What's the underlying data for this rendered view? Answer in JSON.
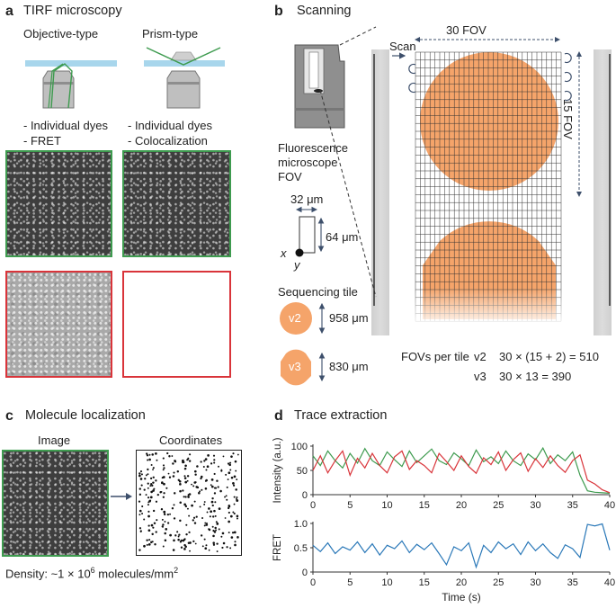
{
  "panel_a": {
    "letter": "a",
    "title": "TIRF microscopy",
    "objective_label": "Objective-type",
    "prism_label": "Prism-type",
    "objective_notes": [
      "- Individual dyes",
      "- FRET"
    ],
    "prism_notes": [
      "- Individual dyes",
      "- Colocalization"
    ]
  },
  "panel_b": {
    "letter": "b",
    "title": "Scanning",
    "fov_width_label": "30 FOV",
    "fov_height_label": "15 FOV",
    "scan_label": "Scan",
    "microscope_label": [
      "Fluorescence",
      "microscope",
      "FOV"
    ],
    "fov_x_um": "32 μm",
    "fov_y_um": "64 μm",
    "axis_x": "x",
    "axis_y": "y",
    "tile_title": "Sequencing tile",
    "tiles": [
      {
        "name": "v2",
        "size": "958 μm"
      },
      {
        "name": "v3",
        "size": "830 μm"
      }
    ],
    "fovs_title": "FOVs per tile",
    "fovs": [
      {
        "version": "v2",
        "formula": "30 × (15 + 2) = 510"
      },
      {
        "version": "v3",
        "formula": "30 × 13 = 390"
      }
    ],
    "grid_cols": 30,
    "grid_rows": 34
  },
  "panel_c": {
    "letter": "c",
    "title": "Molecule localization",
    "image_label": "Image",
    "coords_label": "Coordinates",
    "density_prefix": "Density: ~1 × 10",
    "density_exp": "6",
    "density_suffix": " molecules/mm",
    "density_sq": "2"
  },
  "panel_d": {
    "letter": "d",
    "title": "Trace extraction"
  },
  "colors": {
    "green": "#3e9b4f",
    "red": "#d9343a",
    "blue": "#2a78b8",
    "orange": "#f5a46a",
    "glass": "#a8d6ec",
    "arrow": "#3d4f6b"
  },
  "chart_data": [
    {
      "type": "line",
      "title": "",
      "xlabel": "",
      "ylabel": "Intensity (a.u.)",
      "xlim": [
        0,
        40
      ],
      "ylim": [
        0,
        100
      ],
      "xticks": [
        "0",
        "5",
        "10",
        "15",
        "20",
        "25",
        "30",
        "35",
        "40"
      ],
      "yticks": [
        "0",
        "50",
        "100"
      ],
      "series": [
        {
          "name": "",
          "color": "#3e9b4f",
          "x": [
            0,
            1,
            2,
            3,
            4,
            5,
            6,
            7,
            8,
            9,
            10,
            11,
            12,
            13,
            14,
            15,
            16,
            17,
            18,
            19,
            20,
            21,
            22,
            23,
            24,
            25,
            26,
            27,
            28,
            29,
            30,
            31,
            32,
            33,
            34,
            35,
            36,
            37,
            38,
            39,
            40
          ],
          "values": [
            80,
            60,
            90,
            70,
            55,
            85,
            65,
            95,
            70,
            60,
            88,
            72,
            58,
            90,
            66,
            80,
            94,
            70,
            62,
            86,
            74,
            60,
            92,
            68,
            78,
            64,
            90,
            70,
            60,
            84,
            72,
            96,
            64,
            82,
            70,
            88,
            40,
            8,
            5,
            4,
            3
          ]
        },
        {
          "name": "",
          "color": "#d9343a",
          "x": [
            0,
            1,
            2,
            3,
            4,
            5,
            6,
            7,
            8,
            9,
            10,
            11,
            12,
            13,
            14,
            15,
            16,
            17,
            18,
            19,
            20,
            21,
            22,
            23,
            24,
            25,
            26,
            27,
            28,
            29,
            30,
            31,
            32,
            33,
            34,
            35,
            36,
            37,
            38,
            39,
            40
          ],
          "values": [
            50,
            80,
            45,
            70,
            90,
            40,
            75,
            55,
            85,
            60,
            45,
            78,
            90,
            52,
            70,
            60,
            45,
            85,
            68,
            50,
            80,
            58,
            44,
            76,
            62,
            88,
            50,
            72,
            86,
            48,
            74,
            56,
            80,
            60,
            46,
            70,
            82,
            30,
            22,
            10,
            4
          ]
        }
      ]
    },
    {
      "type": "line",
      "title": "",
      "xlabel": "Time (s)",
      "ylabel": "FRET",
      "xlim": [
        0,
        40
      ],
      "ylim": [
        0,
        1
      ],
      "xticks": [
        "0",
        "5",
        "10",
        "15",
        "20",
        "25",
        "30",
        "35",
        "40"
      ],
      "yticks": [
        "0",
        "0.5",
        "1.0"
      ],
      "series": [
        {
          "name": "",
          "color": "#2a78b8",
          "x": [
            0,
            1,
            2,
            3,
            4,
            5,
            6,
            7,
            8,
            9,
            10,
            11,
            12,
            13,
            14,
            15,
            16,
            17,
            18,
            19,
            20,
            21,
            22,
            23,
            24,
            25,
            26,
            27,
            28,
            29,
            30,
            31,
            32,
            33,
            34,
            35,
            36,
            37,
            38,
            39,
            40
          ],
          "values": [
            0.55,
            0.42,
            0.6,
            0.38,
            0.52,
            0.45,
            0.62,
            0.4,
            0.58,
            0.35,
            0.55,
            0.48,
            0.64,
            0.4,
            0.57,
            0.46,
            0.6,
            0.38,
            0.15,
            0.52,
            0.44,
            0.6,
            0.1,
            0.55,
            0.4,
            0.62,
            0.48,
            0.58,
            0.36,
            0.62,
            0.44,
            0.58,
            0.4,
            0.28,
            0.56,
            0.48,
            0.3,
            0.98,
            0.95,
            0.99,
            0.45
          ]
        }
      ]
    }
  ]
}
